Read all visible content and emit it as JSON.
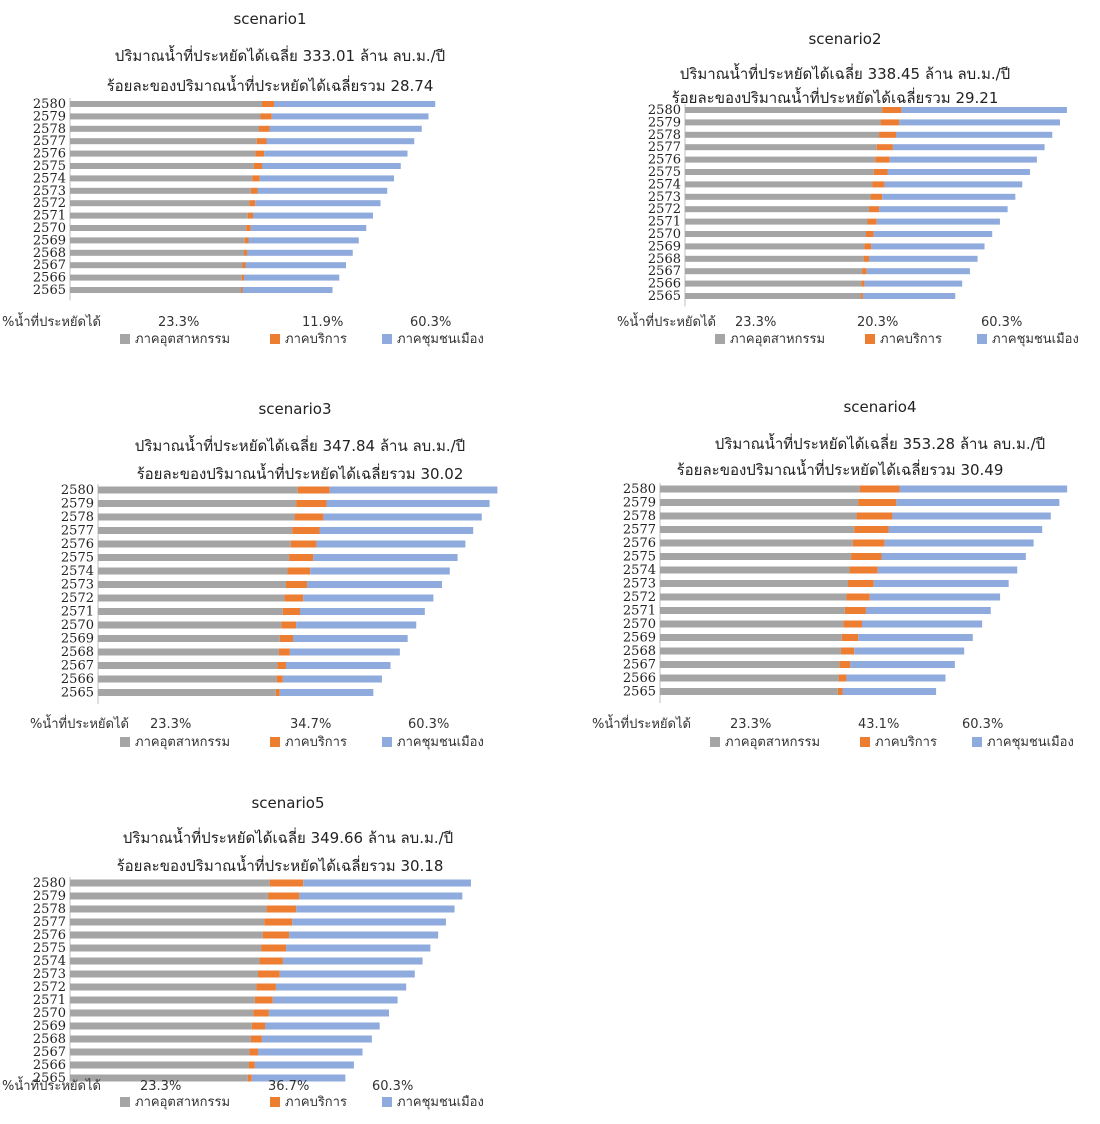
{
  "legend": {
    "items": [
      {
        "name": "ภาคอุตสาหกรรม",
        "color": "#a5a5a5"
      },
      {
        "name": "ภาคบริการ",
        "color": "#ed7d31"
      },
      {
        "name": "ภาคชุมชนเมือง",
        "color": "#8faadc"
      }
    ]
  },
  "footer_label": "%น้ำที่ประหยัดได้",
  "chart_data": [
    {
      "type": "bar",
      "title": "scenario1",
      "subtitle": "ปริมาณน้ำที่ประหยัดได้เฉลี่ย 333.01  ล้าน ลบ.ม./ปี",
      "subtitle2": "ร้อยละของปริมาณน้ำที่ประหยัดได้เฉลี่ยรวม  28.74",
      "categories": [
        "2565",
        "2566",
        "2567",
        "2568",
        "2569",
        "2570",
        "2571",
        "2572",
        "2573",
        "2574",
        "2575",
        "2576",
        "2577",
        "2578",
        "2579",
        "2580"
      ],
      "footer_values": [
        "23.3%",
        "11.9%",
        "60.3%"
      ],
      "series": [
        {
          "name": "ภาคอุตสาหกรรม",
          "values": [
            228,
            229,
            230,
            232,
            233,
            235,
            237,
            239,
            241,
            243,
            245,
            247,
            249,
            252,
            254,
            256
          ]
        },
        {
          "name": "ภาคบริการ",
          "values": [
            2,
            3,
            4,
            4,
            5,
            6,
            7,
            8,
            9,
            10,
            11,
            12,
            13,
            14,
            15,
            16
          ]
        },
        {
          "name": "ภาคชุมชนเมือง",
          "values": [
            120,
            127,
            134,
            141,
            147,
            154,
            160,
            167,
            173,
            179,
            185,
            191,
            197,
            203,
            209,
            215
          ]
        }
      ]
    },
    {
      "type": "bar",
      "title": "scenario2",
      "subtitle": "ปริมาณน้ำที่ประหยัดได้เฉลี่ย 338.45 ล้าน ลบ.ม./ปี",
      "subtitle2": "ร้อยละของปริมาณน้ำที่ประหยัดได้เฉลี่ยรวม  29.21",
      "categories": [
        "2565",
        "2566",
        "2567",
        "2568",
        "2569",
        "2570",
        "2571",
        "2572",
        "2573",
        "2574",
        "2575",
        "2576",
        "2577",
        "2578",
        "2579",
        "2580"
      ],
      "footer_values": [
        "23.3%",
        "20.3%",
        "60.3%"
      ],
      "series": [
        {
          "name": "ภาคอุตสาหกรรม",
          "values": [
            228,
            229,
            230,
            232,
            233,
            235,
            237,
            239,
            241,
            243,
            245,
            247,
            249,
            252,
            254,
            256
          ]
        },
        {
          "name": "ภาคบริการ",
          "values": [
            3,
            4,
            6,
            7,
            9,
            10,
            12,
            13,
            15,
            16,
            18,
            19,
            21,
            22,
            24,
            25
          ]
        },
        {
          "name": "ภาคชุมชนเมือง",
          "values": [
            120,
            127,
            134,
            141,
            147,
            154,
            160,
            167,
            173,
            179,
            185,
            191,
            197,
            203,
            209,
            215
          ]
        }
      ]
    },
    {
      "type": "bar",
      "title": "scenario3",
      "subtitle": "ปริมาณน้ำที่ประหยัดได้เฉลี่ย 347.84 ล้าน ลบ.ม./ปี",
      "subtitle2": "ร้อยละของปริมาณน้ำที่ประหยัดได้เฉลี่ยรวม  30.02",
      "categories": [
        "2565",
        "2566",
        "2567",
        "2568",
        "2569",
        "2570",
        "2571",
        "2572",
        "2573",
        "2574",
        "2575",
        "2576",
        "2577",
        "2578",
        "2579",
        "2580"
      ],
      "footer_values": [
        "23.3%",
        "34.7%",
        "60.3%"
      ],
      "series": [
        {
          "name": "ภาคอุตสาหกรรม",
          "values": [
            228,
            229,
            230,
            232,
            233,
            235,
            237,
            239,
            241,
            243,
            245,
            247,
            249,
            252,
            254,
            256
          ]
        },
        {
          "name": "ภาคบริการ",
          "values": [
            5,
            8,
            11,
            14,
            17,
            19,
            22,
            24,
            27,
            29,
            31,
            33,
            35,
            37,
            39,
            41
          ]
        },
        {
          "name": "ภาคชุมชนเมือง",
          "values": [
            120,
            127,
            134,
            141,
            147,
            154,
            160,
            167,
            173,
            179,
            185,
            191,
            197,
            203,
            209,
            215
          ]
        }
      ]
    },
    {
      "type": "bar",
      "title": "scenario4",
      "subtitle": "ปริมาณน้ำที่ประหยัดได้เฉลี่ย 353.28 ล้าน ลบ.ม./ปี",
      "subtitle2": "ร้อยละของปริมาณน้ำที่ประหยัดได้เฉลี่ยรวม  30.49",
      "categories": [
        "2565",
        "2566",
        "2567",
        "2568",
        "2569",
        "2570",
        "2571",
        "2572",
        "2573",
        "2574",
        "2575",
        "2576",
        "2577",
        "2578",
        "2579",
        "2580"
      ],
      "footer_values": [
        "23.3%",
        "43.1%",
        "60.3%"
      ],
      "series": [
        {
          "name": "ภาคอุตสาหกรรม",
          "values": [
            228,
            229,
            230,
            232,
            233,
            235,
            237,
            239,
            241,
            243,
            245,
            247,
            249,
            252,
            254,
            256
          ]
        },
        {
          "name": "ภาคบริการ",
          "values": [
            6,
            10,
            14,
            17,
            21,
            24,
            27,
            30,
            33,
            36,
            39,
            41,
            44,
            46,
            49,
            51
          ]
        },
        {
          "name": "ภาคชุมชนเมือง",
          "values": [
            120,
            127,
            134,
            141,
            147,
            154,
            160,
            167,
            173,
            179,
            185,
            191,
            197,
            203,
            209,
            215
          ]
        }
      ]
    },
    {
      "type": "bar",
      "title": "scenario5",
      "subtitle": "ปริมาณน้ำที่ประหยัดได้เฉลี่ย 349.66 ล้าน ลบ.ม./ปี",
      "subtitle2": "ร้อยละของปริมาณน้ำที่ประหยัดได้เฉลี่ยรวม  30.18",
      "categories": [
        "2565",
        "2566",
        "2567",
        "2568",
        "2569",
        "2570",
        "2571",
        "2572",
        "2573",
        "2574",
        "2575",
        "2576",
        "2577",
        "2578",
        "2579",
        "2580"
      ],
      "footer_values": [
        "23.3%",
        "36.7%",
        "60.3%"
      ],
      "series": [
        {
          "name": "ภาคอุตสาหกรรม",
          "values": [
            228,
            229,
            230,
            232,
            233,
            235,
            237,
            239,
            241,
            243,
            245,
            247,
            249,
            252,
            254,
            256
          ]
        },
        {
          "name": "ภาคบริการ",
          "values": [
            5,
            8,
            11,
            14,
            17,
            20,
            23,
            25,
            28,
            30,
            32,
            34,
            36,
            38,
            40,
            43
          ]
        },
        {
          "name": "ภาคชุมชนเมือง",
          "values": [
            120,
            127,
            134,
            141,
            147,
            154,
            160,
            167,
            173,
            179,
            185,
            191,
            197,
            203,
            209,
            215
          ]
        }
      ]
    }
  ]
}
